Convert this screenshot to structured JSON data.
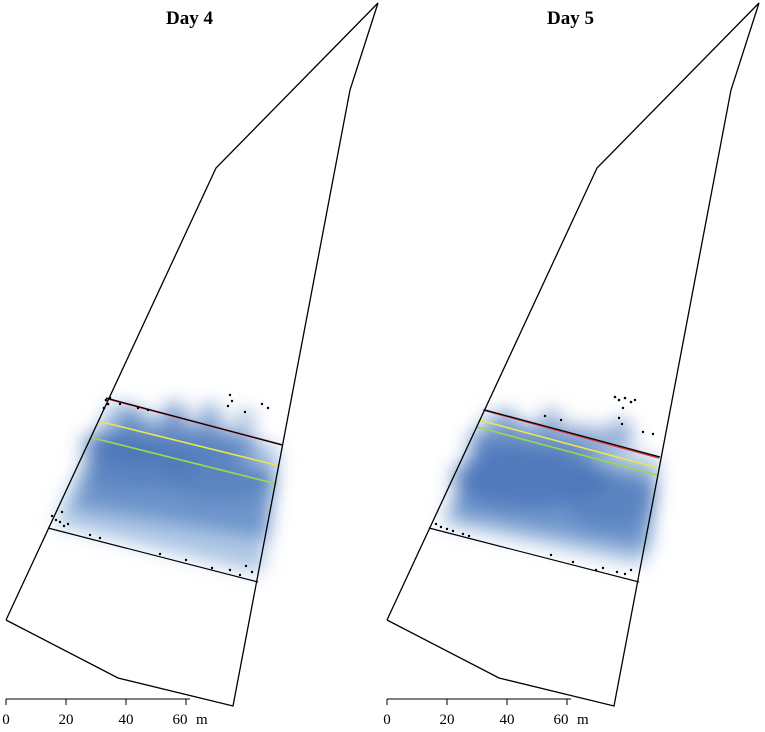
{
  "panels": [
    {
      "title": "Day 4",
      "scale": {
        "ticks": [
          "0",
          "20",
          "40",
          "60"
        ],
        "unit": "m"
      }
    },
    {
      "title": "Day 5",
      "scale": {
        "ticks": [
          "0",
          "20",
          "40",
          "60"
        ],
        "unit": "m"
      }
    }
  ],
  "colors": {
    "outline": "#000000",
    "density": "#2a5aa8",
    "line_red": "#e0303a",
    "line_yellow": "#e8e84a",
    "line_green": "#9ad84a",
    "points": "#000000"
  }
}
